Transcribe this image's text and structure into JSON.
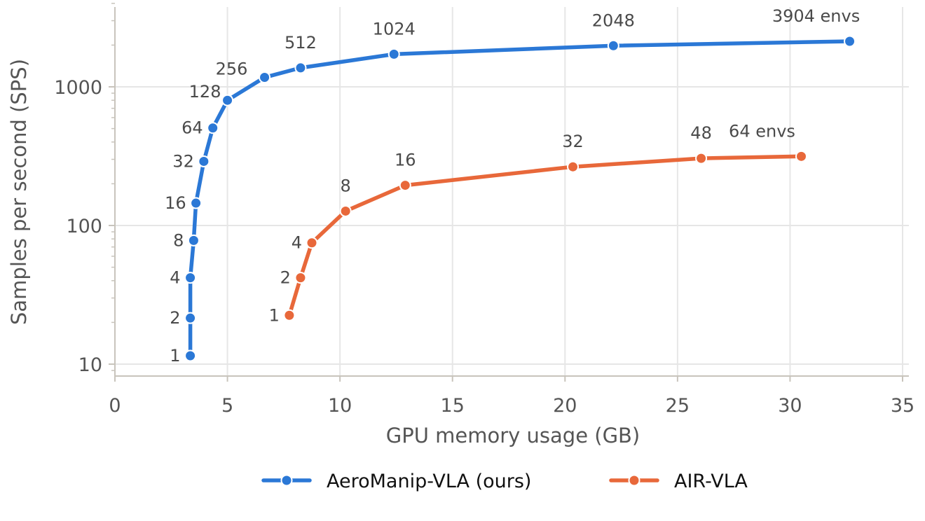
{
  "chart_data": {
    "type": "line",
    "xlabel": "GPU memory usage (GB)",
    "ylabel": "Samples per second (SPS)",
    "xlim": [
      0,
      35
    ],
    "ylim": [
      8.5,
      4500
    ],
    "yscale": "log",
    "xticks": [
      0,
      5,
      10,
      15,
      20,
      25,
      30,
      35
    ],
    "xtick_labels": [
      "0",
      "5",
      "10",
      "15",
      "20",
      "25",
      "30",
      "35"
    ],
    "yticks": [
      10,
      100,
      1000
    ],
    "ytick_labels": [
      "10",
      "100",
      "1000"
    ],
    "grid": true,
    "legend_position": "bottom-center",
    "series": [
      {
        "name": "AeroManip-VLA (ours)",
        "color": "#2b78d6",
        "points": [
          {
            "x": 3.35,
            "y": 11.5,
            "label": "1"
          },
          {
            "x": 3.35,
            "y": 21.5,
            "label": "2"
          },
          {
            "x": 3.35,
            "y": 42,
            "label": "4"
          },
          {
            "x": 3.5,
            "y": 78,
            "label": "8"
          },
          {
            "x": 3.6,
            "y": 145,
            "label": "16"
          },
          {
            "x": 3.95,
            "y": 290,
            "label": "32"
          },
          {
            "x": 4.35,
            "y": 505,
            "label": "64"
          },
          {
            "x": 5.0,
            "y": 800,
            "label": "128"
          },
          {
            "x": 6.65,
            "y": 1170,
            "label": "256"
          },
          {
            "x": 8.25,
            "y": 1370,
            "label": "512"
          },
          {
            "x": 12.4,
            "y": 1720,
            "label": "1024"
          },
          {
            "x": 22.15,
            "y": 1980,
            "label": "2048"
          },
          {
            "x": 32.65,
            "y": 2130,
            "label": "3904 envs"
          }
        ]
      },
      {
        "name": "AIR-VLA",
        "color": "#e8683a",
        "points": [
          {
            "x": 7.75,
            "y": 22.5,
            "label": "1"
          },
          {
            "x": 8.25,
            "y": 42,
            "label": "2"
          },
          {
            "x": 8.75,
            "y": 75,
            "label": "4"
          },
          {
            "x": 10.25,
            "y": 127,
            "label": "8"
          },
          {
            "x": 12.9,
            "y": 195,
            "label": "16"
          },
          {
            "x": 20.35,
            "y": 265,
            "label": "32"
          },
          {
            "x": 26.05,
            "y": 305,
            "label": "48"
          },
          {
            "x": 30.5,
            "y": 315,
            "label": "64 envs"
          }
        ]
      }
    ]
  }
}
